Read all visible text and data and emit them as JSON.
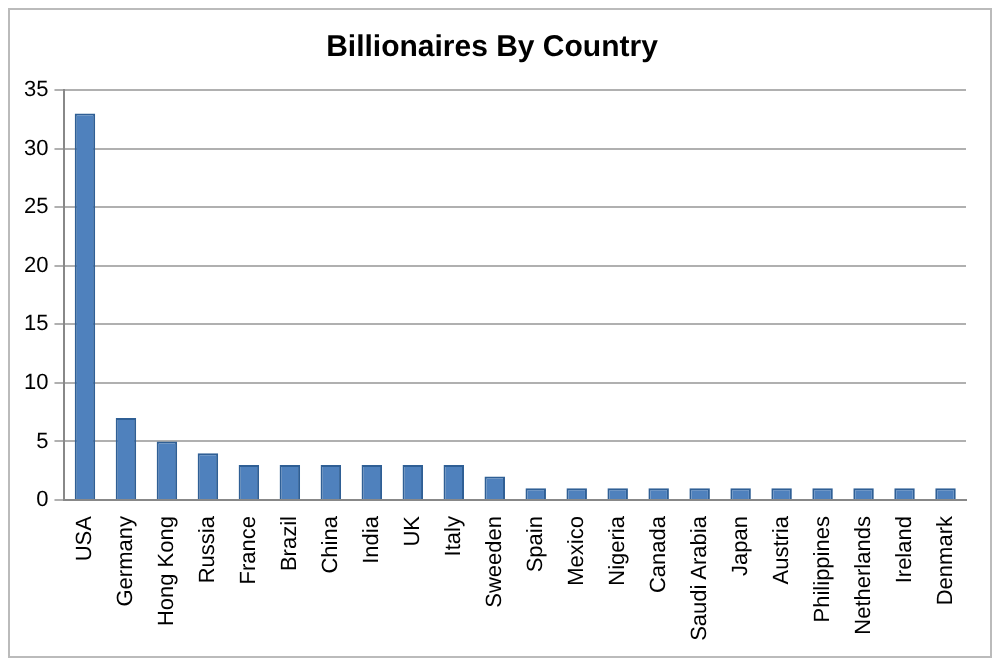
{
  "chart_data": {
    "type": "bar",
    "title": "Billionaires By Country",
    "categories": [
      "USA",
      "Germany",
      "Hong Kong",
      "Russia",
      "France",
      "Brazil",
      "China",
      "India",
      "UK",
      "Italy",
      "Sweeden",
      "Spain",
      "Mexico",
      "Nigeria",
      "Canada",
      "Saudi Arabia",
      "Japan",
      "Austria",
      "Philippines",
      "Netherlands",
      "Ireland",
      "Denmark"
    ],
    "values": [
      33,
      7,
      5,
      4,
      3,
      3,
      3,
      3,
      3,
      3,
      2,
      1,
      1,
      1,
      1,
      1,
      1,
      1,
      1,
      1,
      1,
      1
    ],
    "color": "#4f81bd",
    "ylim": [
      0,
      35
    ],
    "yticks": [
      0,
      5,
      10,
      15,
      20,
      25,
      30,
      35
    ],
    "grid": "y",
    "legend": false
  }
}
